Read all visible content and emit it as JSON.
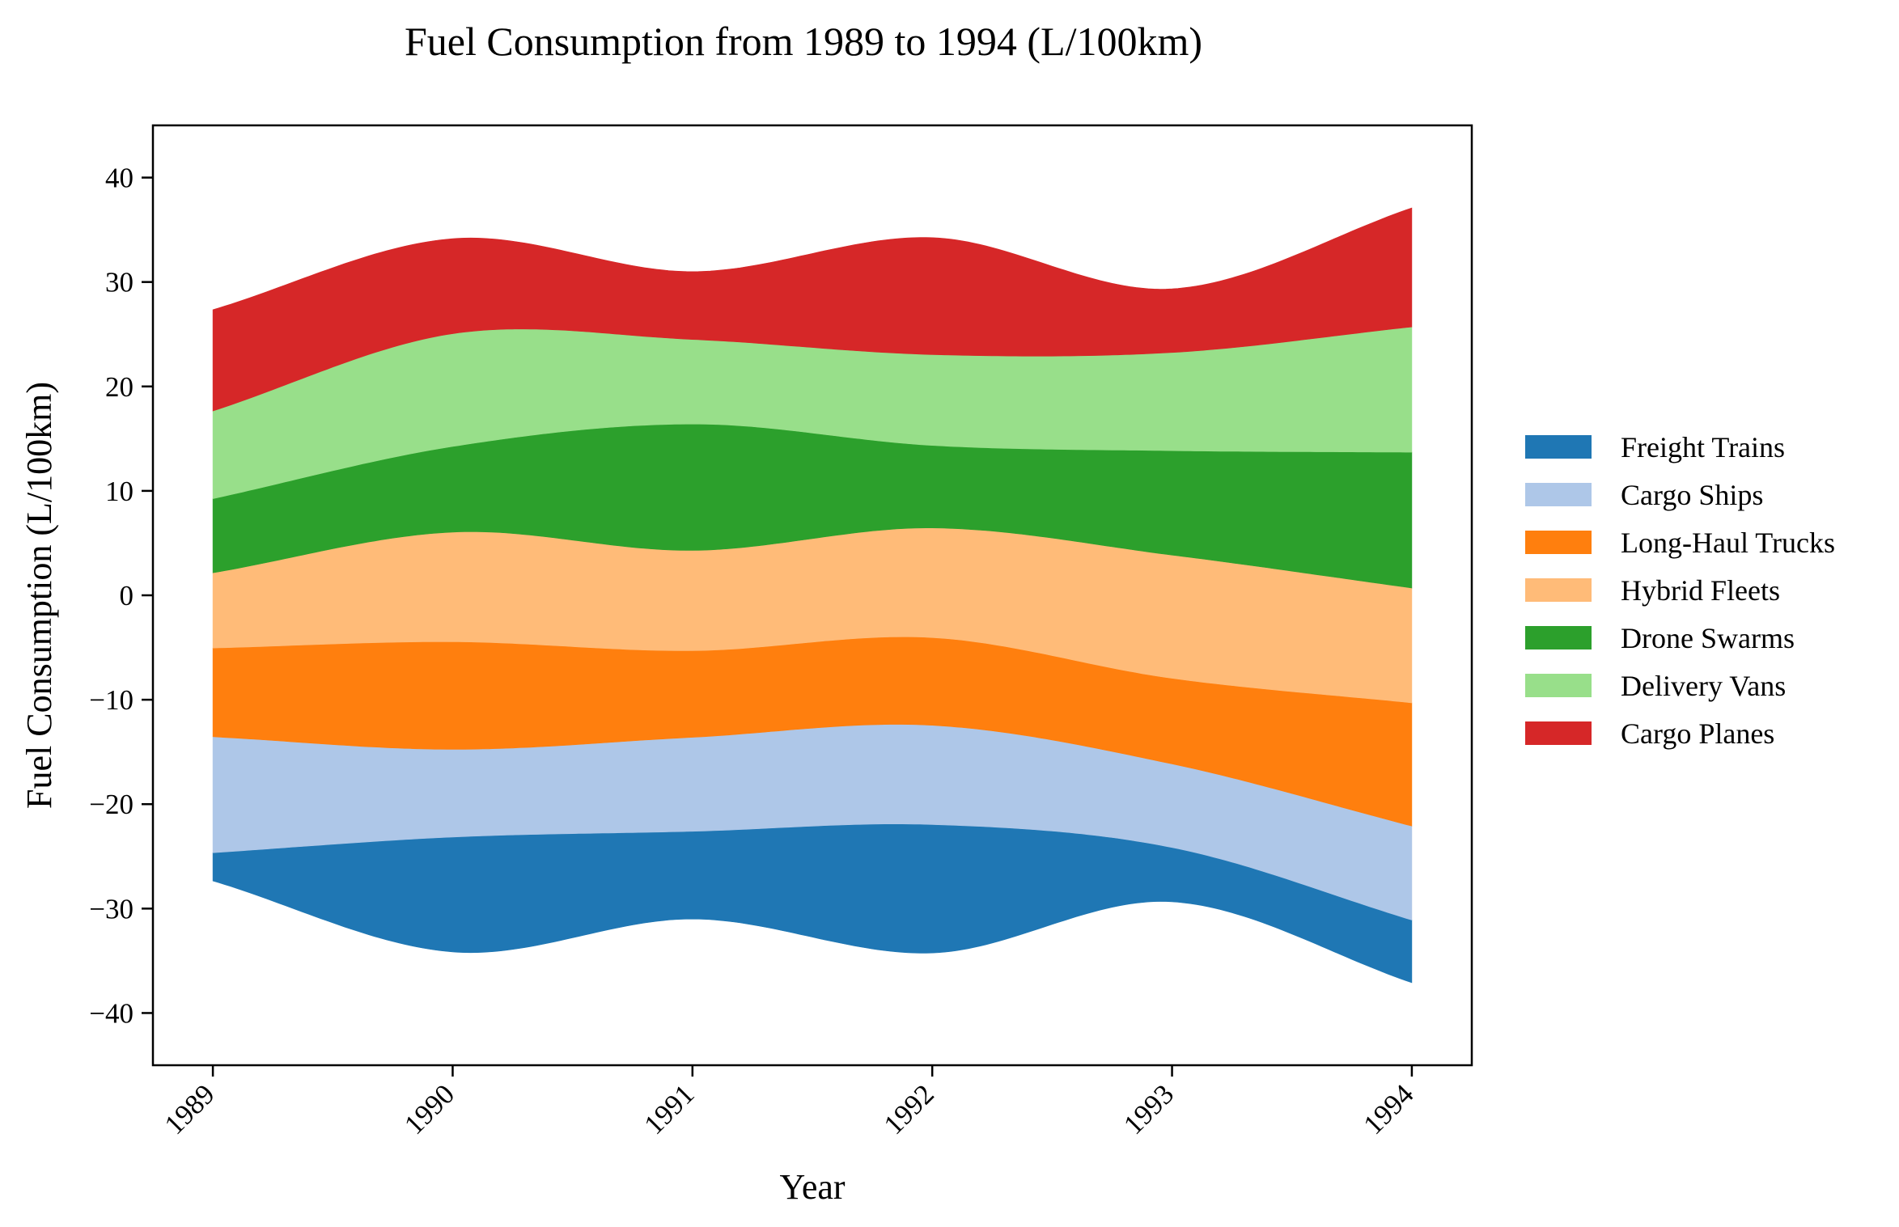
{
  "chart_data": {
    "type": "area",
    "subtype": "streamgraph",
    "title": "Fuel Consumption from 1989 to 1994 (L/100km)",
    "xlabel": "Year",
    "ylabel": "Fuel Consumption (L/100km)",
    "x": [
      1989,
      1990,
      1991,
      1992,
      1993,
      1994
    ],
    "x_tick_labels": [
      "1989",
      "1990",
      "1991",
      "1992",
      "1993",
      "1994"
    ],
    "y_ticks": [
      40,
      30,
      20,
      10,
      0,
      -10,
      -20,
      -30,
      -40
    ],
    "y_tick_labels": [
      "40",
      "30",
      "20",
      "10",
      "0",
      "−10",
      "−20",
      "−30",
      "−40"
    ],
    "ylim": [
      -45,
      45
    ],
    "xlim": [
      1988.75,
      1994.25
    ],
    "grid": false,
    "legend_position": "right",
    "series": [
      {
        "name": "Freight Trains",
        "color": "#1f77b4",
        "values": [
          2.7,
          11.0,
          8.4,
          12.3,
          5.2,
          6.0
        ]
      },
      {
        "name": "Cargo Ships",
        "color": "#aec7e8",
        "values": [
          11.1,
          8.4,
          9.0,
          9.5,
          8.0,
          9.0
        ]
      },
      {
        "name": "Long-Haul Trucks",
        "color": "#ff7f0e",
        "values": [
          8.5,
          10.3,
          8.3,
          8.4,
          8.2,
          11.8
        ]
      },
      {
        "name": "Hybrid Fleets",
        "color": "#ffbb78",
        "values": [
          7.2,
          10.5,
          9.6,
          10.5,
          11.8,
          11.0
        ]
      },
      {
        "name": "Drone Swarms",
        "color": "#2ca02c",
        "values": [
          7.1,
          8.2,
          12.1,
          7.9,
          10.0,
          13.0
        ]
      },
      {
        "name": "Delivery Vans",
        "color": "#98df8a",
        "values": [
          8.4,
          10.8,
          8.1,
          8.7,
          9.4,
          12.0
        ]
      },
      {
        "name": "Cargo Planes",
        "color": "#d62728",
        "values": [
          9.7,
          9.1,
          6.5,
          11.2,
          6.1,
          11.4
        ]
      }
    ]
  }
}
